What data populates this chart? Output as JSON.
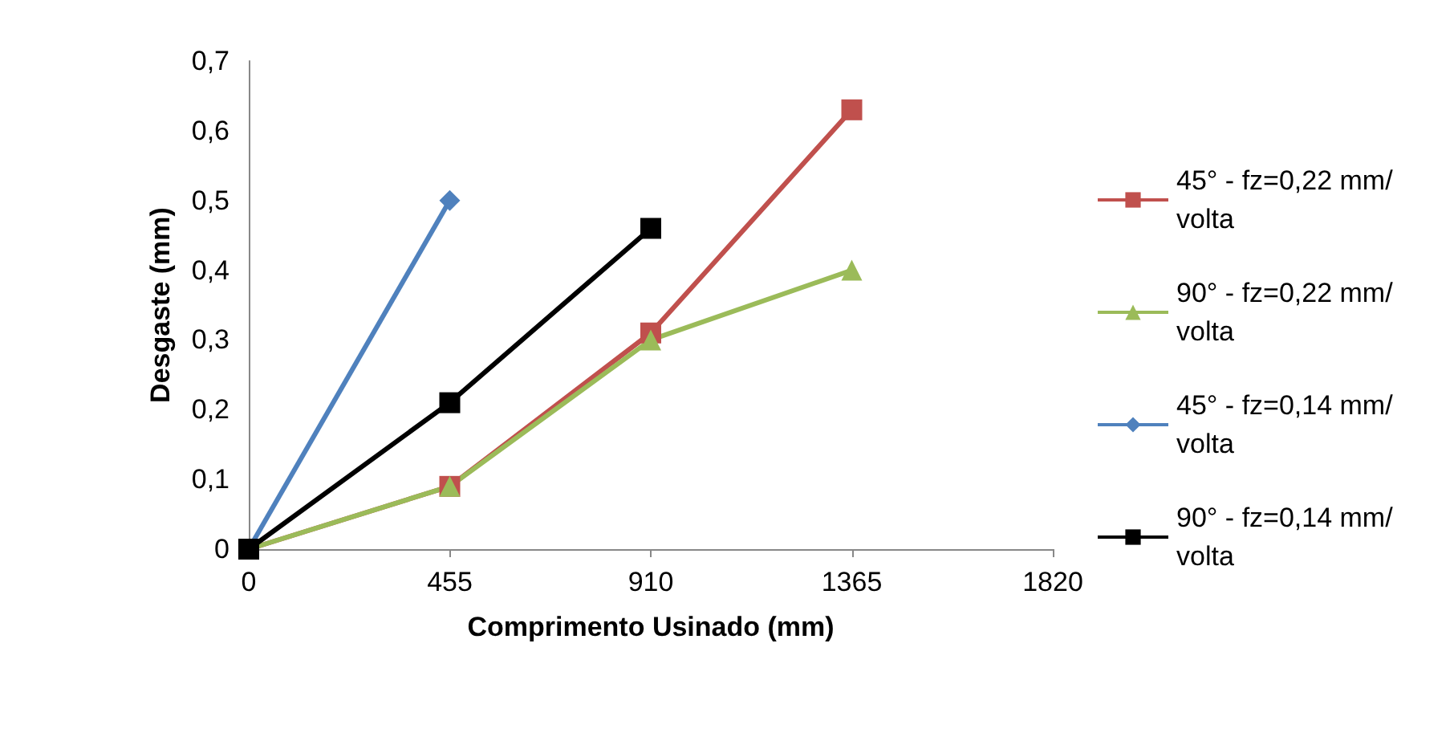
{
  "chart_data": {
    "type": "line",
    "xlabel": "Comprimento Usinado (mm)",
    "ylabel": "Desgaste (mm)",
    "xlim": [
      0,
      1820
    ],
    "xticks": [
      0,
      455,
      910,
      1365,
      1820
    ],
    "ylim": [
      0,
      0.7
    ],
    "yticks": [
      {
        "value": 0,
        "label": "0"
      },
      {
        "value": 0.1,
        "label": "0,1"
      },
      {
        "value": 0.2,
        "label": "0,2"
      },
      {
        "value": 0.3,
        "label": "0,3"
      },
      {
        "value": 0.4,
        "label": "0,4"
      },
      {
        "value": 0.5,
        "label": "0,5"
      },
      {
        "value": 0.6,
        "label": "0,6"
      },
      {
        "value": 0.7,
        "label": "0,7"
      }
    ],
    "grid": false,
    "legend": "right",
    "line_style": "solid",
    "series": [
      {
        "name": "45° - fz=0,22 mm/volta",
        "color": "#c0504d",
        "marker": "square",
        "x": [
          0,
          455,
          910,
          1365
        ],
        "values": [
          0,
          0.09,
          0.31,
          0.63
        ]
      },
      {
        "name": "90° - fz=0,22 mm/volta",
        "color": "#9bbb59",
        "marker": "triangle",
        "x": [
          0,
          455,
          910,
          1365
        ],
        "values": [
          0,
          0.09,
          0.3,
          0.4
        ]
      },
      {
        "name": "45° - fz=0,14 mm/volta",
        "color": "#4f81bd",
        "marker": "diamond",
        "x": [
          0,
          455
        ],
        "values": [
          0,
          0.5
        ]
      },
      {
        "name": "90° - fz=0,14 mm/volta",
        "color": "#000000",
        "marker": "square",
        "x": [
          0,
          455,
          910
        ],
        "values": [
          0,
          0.21,
          0.46
        ]
      }
    ]
  }
}
